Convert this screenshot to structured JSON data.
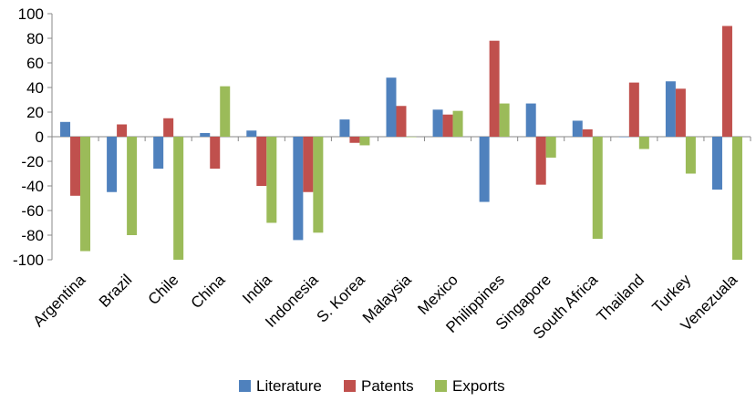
{
  "chart_data": {
    "type": "bar",
    "categories": [
      "Argentina",
      "Brazil",
      "Chile",
      "China",
      "India",
      "Indonesia",
      "S. Korea",
      "Malaysia",
      "Mexico",
      "Philippines",
      "Singapore",
      "South Africa",
      "Thailand",
      "Turkey",
      "Venezuala"
    ],
    "series": [
      {
        "name": "Literature",
        "color": "#4f81bd",
        "values": [
          12,
          -45,
          -26,
          3,
          5,
          -84,
          14,
          48,
          22,
          -53,
          27,
          13,
          0,
          45,
          -43
        ]
      },
      {
        "name": "Patents",
        "color": "#c0504d",
        "values": [
          -48,
          10,
          15,
          -26,
          -40,
          -45,
          -5,
          25,
          18,
          78,
          -39,
          6,
          44,
          39,
          90
        ]
      },
      {
        "name": "Exports",
        "color": "#9bbb59",
        "values": [
          -93,
          -80,
          -100,
          41,
          -70,
          -78,
          -7,
          0,
          21,
          27,
          -17,
          -83,
          -10,
          -30,
          -100
        ]
      }
    ],
    "title": "",
    "xlabel": "",
    "ylabel": "",
    "ylim": [
      -100,
      100
    ],
    "yticks": [
      "100",
      "80",
      "60",
      "40",
      "20",
      "0",
      "-20",
      "-40",
      "-60",
      "-80",
      "-100"
    ],
    "grid": false,
    "legend": "bottom"
  }
}
